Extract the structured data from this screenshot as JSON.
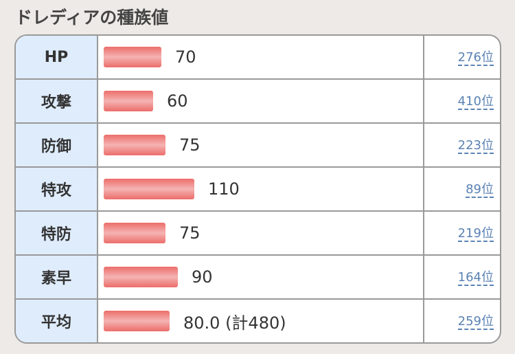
{
  "title": "ドレディアの種族値",
  "stats": [
    {
      "label": "HP",
      "value": 70,
      "display": "70",
      "rank": "276位"
    },
    {
      "label": "攻撃",
      "value": 60,
      "display": "60",
      "rank": "410位"
    },
    {
      "label": "防御",
      "value": 75,
      "display": "75",
      "rank": "223位"
    },
    {
      "label": "特攻",
      "value": 110,
      "display": "110",
      "rank": "89位"
    },
    {
      "label": "特防",
      "value": 75,
      "display": "75",
      "rank": "219位"
    },
    {
      "label": "素早",
      "value": 90,
      "display": "90",
      "rank": "164位"
    },
    {
      "label": "平均",
      "value": 80,
      "display": "80.0 (計480)",
      "rank": "259位"
    }
  ],
  "colors": {
    "bar": "#ec6d6a",
    "label_bg": "#dfecfc",
    "link": "#5a82b4"
  }
}
